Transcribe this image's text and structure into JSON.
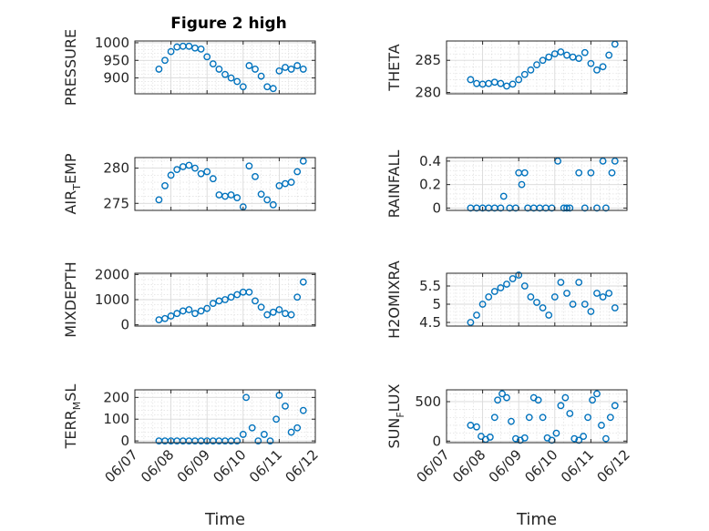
{
  "figure": {
    "title": "Figure 2 high",
    "marker_color": "#0072BD",
    "axis_color": "#262626",
    "grid_color": "#d9d9d9"
  },
  "chart_data": [
    {
      "id": "pressure",
      "type": "scatter",
      "title": "Figure 2 high",
      "ylabel": "PRESSURE",
      "ylabel_main": "PRESSURE",
      "ylabel_sub": "",
      "ylabel_tail": "",
      "ylim": [
        855,
        1005
      ],
      "yticks": [
        900,
        950,
        1000
      ],
      "grid": true,
      "x": [
        "06/07 16:00",
        "06/07 20:00",
        "06/08 00:00",
        "06/08 04:00",
        "06/08 08:00",
        "06/08 12:00",
        "06/08 16:00",
        "06/08 20:00",
        "06/09 00:00",
        "06/09 04:00",
        "06/09 08:00",
        "06/09 12:00",
        "06/09 16:00",
        "06/09 20:00",
        "06/10 00:00",
        "06/10 04:00",
        "06/10 08:00",
        "06/10 12:00",
        "06/10 16:00",
        "06/10 20:00",
        "06/11 00:00",
        "06/11 04:00",
        "06/11 08:00",
        "06/11 12:00",
        "06/11 16:00"
      ],
      "y": [
        925,
        950,
        975,
        988,
        990,
        990,
        985,
        982,
        960,
        940,
        925,
        910,
        900,
        890,
        875,
        935,
        925,
        905,
        875,
        870,
        920,
        930,
        925,
        935,
        925
      ]
    },
    {
      "id": "theta",
      "type": "scatter",
      "ylabel": "THETA",
      "ylabel_main": "THETA",
      "ylabel_sub": "",
      "ylabel_tail": "",
      "ylim": [
        279.8,
        288
      ],
      "yticks": [
        280,
        285
      ],
      "grid": true,
      "x": [
        "06/07 16:00",
        "06/07 20:00",
        "06/08 00:00",
        "06/08 04:00",
        "06/08 08:00",
        "06/08 12:00",
        "06/08 16:00",
        "06/08 20:00",
        "06/09 00:00",
        "06/09 04:00",
        "06/09 08:00",
        "06/09 12:00",
        "06/09 16:00",
        "06/09 20:00",
        "06/10 00:00",
        "06/10 04:00",
        "06/10 08:00",
        "06/10 12:00",
        "06/10 16:00",
        "06/10 20:00",
        "06/11 00:00",
        "06/11 04:00",
        "06/11 08:00",
        "06/11 12:00",
        "06/11 16:00"
      ],
      "y": [
        282,
        281.4,
        281.3,
        281.4,
        281.6,
        281.4,
        281,
        281.3,
        282,
        282.8,
        283.5,
        284.3,
        285,
        285.5,
        286,
        286.3,
        285.8,
        285.5,
        285.3,
        286.2,
        284.5,
        283.5,
        284,
        285.8,
        287.5
      ]
    },
    {
      "id": "air_temp",
      "type": "scatter",
      "ylabel": "AIR_TEMP",
      "ylabel_main": "AIR",
      "ylabel_sub": "T",
      "ylabel_tail": "EMP",
      "ylim": [
        274,
        281.5
      ],
      "yticks": [
        275,
        280
      ],
      "grid": true,
      "x": [
        "06/07 16:00",
        "06/07 20:00",
        "06/08 00:00",
        "06/08 04:00",
        "06/08 08:00",
        "06/08 12:00",
        "06/08 16:00",
        "06/08 20:00",
        "06/09 00:00",
        "06/09 04:00",
        "06/09 08:00",
        "06/09 12:00",
        "06/09 16:00",
        "06/09 20:00",
        "06/10 00:00",
        "06/10 04:00",
        "06/10 08:00",
        "06/10 12:00",
        "06/10 16:00",
        "06/10 20:00",
        "06/11 00:00",
        "06/11 04:00",
        "06/11 08:00",
        "06/11 12:00",
        "06/11 16:00"
      ],
      "y": [
        275.5,
        277.5,
        279,
        279.8,
        280.2,
        280.4,
        280,
        279.2,
        279.5,
        278.5,
        276.2,
        276,
        276.2,
        275.8,
        274.5,
        280.3,
        278.8,
        276.3,
        275.5,
        274.8,
        277.5,
        277.8,
        278,
        279.5,
        281
      ]
    },
    {
      "id": "rainfall",
      "type": "scatter",
      "ylabel": "RAINFALL",
      "ylabel_main": "RAINFALL",
      "ylabel_sub": "",
      "ylabel_tail": "",
      "ylim": [
        -0.02,
        0.43
      ],
      "yticks": [
        0,
        0.2,
        0.4
      ],
      "grid": true,
      "x": [
        "06/07 16:00",
        "06/07 20:00",
        "06/08 00:00",
        "06/08 04:00",
        "06/08 08:00",
        "06/08 12:00",
        "06/08 14:00",
        "06/08 18:00",
        "06/08 22:00",
        "06/09 00:00",
        "06/09 02:00",
        "06/09 04:00",
        "06/09 06:00",
        "06/09 10:00",
        "06/09 14:00",
        "06/09 18:00",
        "06/09 22:00",
        "06/10 02:00",
        "06/10 06:00",
        "06/10 08:00",
        "06/10 10:00",
        "06/10 16:00",
        "06/10 20:00",
        "06/11 00:00",
        "06/11 04:00",
        "06/11 08:00",
        "06/11 10:00",
        "06/11 14:00",
        "06/11 16:00"
      ],
      "y": [
        0,
        0,
        0,
        0,
        0,
        0,
        0.1,
        0,
        0,
        0.3,
        0.2,
        0.3,
        0,
        0,
        0,
        0,
        0,
        0.4,
        0,
        0,
        0,
        0.3,
        0,
        0.3,
        0,
        0.4,
        0,
        0.3,
        0.4
      ]
    },
    {
      "id": "mixdepth",
      "type": "scatter",
      "ylabel": "MIXDEPTH",
      "ylabel_main": "MIXDEPTH",
      "ylabel_sub": "",
      "ylabel_tail": "",
      "ylim": [
        -50,
        2050
      ],
      "yticks": [
        0,
        1000,
        2000
      ],
      "grid": true,
      "x": [
        "06/07 16:00",
        "06/07 20:00",
        "06/08 00:00",
        "06/08 04:00",
        "06/08 08:00",
        "06/08 12:00",
        "06/08 16:00",
        "06/08 20:00",
        "06/09 00:00",
        "06/09 04:00",
        "06/09 08:00",
        "06/09 12:00",
        "06/09 16:00",
        "06/09 20:00",
        "06/10 00:00",
        "06/10 04:00",
        "06/10 08:00",
        "06/10 12:00",
        "06/10 16:00",
        "06/10 20:00",
        "06/11 00:00",
        "06/11 04:00",
        "06/11 08:00",
        "06/11 12:00",
        "06/11 16:00"
      ],
      "y": [
        200,
        250,
        350,
        450,
        550,
        600,
        450,
        550,
        650,
        850,
        950,
        1000,
        1100,
        1200,
        1300,
        1300,
        950,
        700,
        400,
        500,
        600,
        450,
        400,
        1100,
        1700
      ]
    },
    {
      "id": "h2omixra",
      "type": "scatter",
      "ylabel": "H2OMIXRA",
      "ylabel_main": "H2OMIXRA",
      "ylabel_sub": "",
      "ylabel_tail": "",
      "ylim": [
        4.4,
        5.85
      ],
      "yticks": [
        4.5,
        5,
        5.5
      ],
      "grid": true,
      "x": [
        "06/07 16:00",
        "06/07 20:00",
        "06/08 00:00",
        "06/08 04:00",
        "06/08 08:00",
        "06/08 12:00",
        "06/08 16:00",
        "06/08 20:00",
        "06/09 00:00",
        "06/09 04:00",
        "06/09 08:00",
        "06/09 12:00",
        "06/09 16:00",
        "06/09 20:00",
        "06/10 00:00",
        "06/10 04:00",
        "06/10 08:00",
        "06/10 12:00",
        "06/10 16:00",
        "06/10 20:00",
        "06/11 00:00",
        "06/11 04:00",
        "06/11 08:00",
        "06/11 12:00",
        "06/11 16:00"
      ],
      "y": [
        4.5,
        4.7,
        5,
        5.2,
        5.35,
        5.45,
        5.55,
        5.7,
        5.8,
        5.5,
        5.2,
        5.05,
        4.9,
        4.7,
        5.2,
        5.6,
        5.3,
        5,
        5.6,
        5,
        4.8,
        5.3,
        5.2,
        5.3,
        4.9
      ]
    },
    {
      "id": "terr_msl",
      "type": "scatter",
      "ylabel": "TERR_MSL",
      "ylabel_main": "TERR",
      "ylabel_sub": "M",
      "ylabel_tail": "SL",
      "ylim": [
        -8,
        235
      ],
      "yticks": [
        0,
        100,
        200
      ],
      "grid": true,
      "x": [
        "06/07 16:00",
        "06/07 20:00",
        "06/08 00:00",
        "06/08 04:00",
        "06/08 08:00",
        "06/08 12:00",
        "06/08 16:00",
        "06/08 20:00",
        "06/09 00:00",
        "06/09 04:00",
        "06/09 08:00",
        "06/09 12:00",
        "06/09 16:00",
        "06/09 20:00",
        "06/10 00:00",
        "06/10 02:00",
        "06/10 06:00",
        "06/10 10:00",
        "06/10 14:00",
        "06/10 18:00",
        "06/10 22:00",
        "06/11 00:00",
        "06/11 04:00",
        "06/11 08:00",
        "06/11 12:00",
        "06/11 16:00"
      ],
      "y": [
        0,
        0,
        0,
        0,
        0,
        0,
        0,
        0,
        0,
        0,
        0,
        0,
        0,
        0,
        30,
        200,
        60,
        0,
        30,
        0,
        100,
        210,
        160,
        40,
        60,
        140
      ]
    },
    {
      "id": "sun_flux",
      "type": "scatter",
      "ylabel": "SUN_FLUX",
      "ylabel_main": "SUN",
      "ylabel_sub": "F",
      "ylabel_tail": "LUX",
      "ylim": [
        -20,
        650
      ],
      "yticks": [
        0,
        500
      ],
      "grid": true,
      "x": [
        "06/07 16:00",
        "06/07 20:00",
        "06/07 23:00",
        "06/08 02:00",
        "06/08 05:00",
        "06/08 08:00",
        "06/08 10:00",
        "06/08 13:00",
        "06/08 16:00",
        "06/08 19:00",
        "06/08 22:00",
        "06/09 01:00",
        "06/09 04:00",
        "06/09 07:00",
        "06/09 10:00",
        "06/09 13:00",
        "06/09 16:00",
        "06/09 19:00",
        "06/09 22:00",
        "06/10 01:00",
        "06/10 04:00",
        "06/10 07:00",
        "06/10 10:00",
        "06/10 13:00",
        "06/10 16:00",
        "06/10 19:00",
        "06/10 22:00",
        "06/11 01:00",
        "06/11 04:00",
        "06/11 07:00",
        "06/11 10:00",
        "06/11 13:00",
        "06/11 16:00"
      ],
      "y": [
        200,
        180,
        60,
        20,
        50,
        300,
        520,
        600,
        550,
        250,
        30,
        10,
        40,
        300,
        550,
        520,
        300,
        40,
        10,
        100,
        450,
        550,
        350,
        30,
        10,
        60,
        300,
        520,
        600,
        200,
        30,
        300,
        450
      ]
    }
  ],
  "xaxis": {
    "label": "Time",
    "range": [
      "06/07 00:00",
      "06/12 00:00"
    ],
    "ticks": [
      "06/07",
      "06/08",
      "06/09",
      "06/10",
      "06/11",
      "06/12"
    ]
  }
}
